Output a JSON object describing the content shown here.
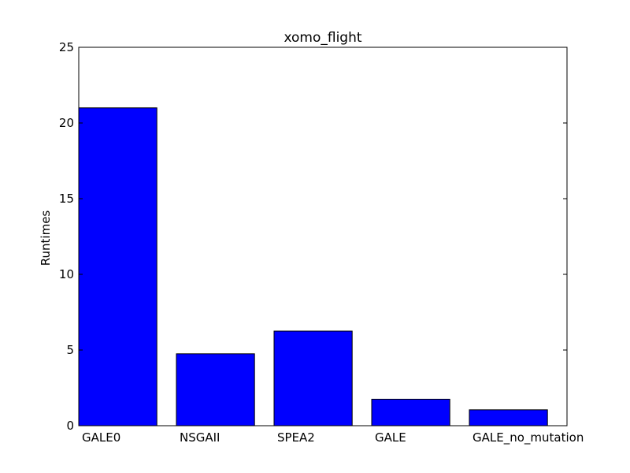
{
  "chart_data": {
    "type": "bar",
    "title": "xomo_flight",
    "xlabel": "",
    "ylabel": "Runtimes",
    "categories": [
      "GALE0",
      "NSGAII",
      "SPEA2",
      "GALE",
      "GALE_no_mutation"
    ],
    "values": [
      21.0,
      4.75,
      6.25,
      1.75,
      1.05
    ],
    "ylim": [
      0,
      25
    ],
    "yticks": [
      0,
      5,
      10,
      15,
      20,
      25
    ],
    "grid": false,
    "legend": "none",
    "colors": {
      "bar_fill": "#0000ff",
      "bar_edge": "#000000",
      "axes": "#000000",
      "background": "#ffffff"
    }
  }
}
